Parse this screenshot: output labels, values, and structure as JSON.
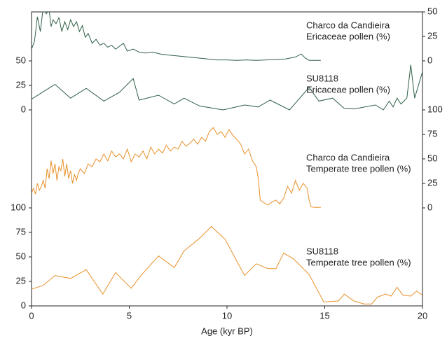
{
  "chart_data": [
    {
      "type": "line",
      "title": [
        "Charco da Candieira",
        "Ericaceae pollen (%)"
      ],
      "color": "#2f5f45",
      "axis_side": "right",
      "xlim": [
        0,
        20
      ],
      "ylim": [
        0,
        50
      ],
      "yticks": [
        0,
        25,
        50
      ],
      "x": [
        0,
        0.15,
        0.3,
        0.45,
        0.6,
        0.75,
        0.9,
        1.0,
        1.1,
        1.25,
        1.4,
        1.55,
        1.7,
        1.85,
        2.0,
        2.15,
        2.3,
        2.45,
        2.6,
        2.75,
        2.9,
        3.1,
        3.3,
        3.5,
        3.7,
        3.9,
        4.1,
        4.3,
        4.5,
        4.7,
        4.9,
        5.2,
        5.5,
        5.8,
        6.2,
        6.6,
        7.0,
        7.5,
        8.0,
        8.5,
        9.0,
        9.5,
        10,
        10.5,
        11,
        11.5,
        12,
        12.5,
        13,
        13.5,
        13.8,
        14.0,
        14.2,
        14.8
      ],
      "values": [
        12,
        20,
        45,
        30,
        55,
        48,
        52,
        35,
        42,
        38,
        44,
        30,
        40,
        32,
        42,
        35,
        40,
        30,
        36,
        24,
        28,
        18,
        22,
        16,
        18,
        14,
        16,
        12,
        15,
        18,
        10,
        12,
        9,
        8,
        9,
        7,
        6,
        5,
        4,
        3,
        2,
        1,
        1,
        0.5,
        1,
        0.5,
        1,
        1.5,
        2,
        4,
        7,
        3,
        0.5,
        0.5
      ]
    },
    {
      "type": "line",
      "title": [
        "SU8118",
        "Ericaceae pollen (%)"
      ],
      "color": "#2f5f45",
      "axis_side": "left",
      "xlim": [
        0,
        20
      ],
      "ylim": [
        0,
        50
      ],
      "yticks": [
        0,
        25,
        50
      ],
      "x": [
        0,
        0.8,
        1.2,
        2.0,
        2.8,
        3.7,
        4.5,
        5.2,
        5.5,
        6.5,
        7.3,
        7.8,
        8.6,
        9.8,
        10.9,
        11.6,
        12.2,
        13.2,
        14.2,
        14.7,
        15.4,
        16.0,
        16.5,
        17.6,
        18.0,
        18.3,
        18.5,
        18.7,
        18.9,
        19.2,
        19.4,
        19.6,
        20
      ],
      "values": [
        11,
        21,
        26,
        12,
        22,
        9,
        18,
        32,
        10,
        15,
        6,
        12,
        4,
        0,
        5,
        3,
        10,
        0,
        23,
        9,
        12,
        1.5,
        1,
        5,
        0,
        9,
        3,
        12,
        6,
        12,
        46,
        12,
        39
      ]
    },
    {
      "type": "line",
      "title": [
        "Charco da Candieira",
        "Temperate tree pollen (%)"
      ],
      "color": "#e8902a",
      "axis_side": "right",
      "xlim": [
        0,
        20
      ],
      "ylim": [
        0,
        100
      ],
      "yticks": [
        0,
        25,
        50,
        75,
        100
      ],
      "x": [
        0,
        0.1,
        0.2,
        0.3,
        0.4,
        0.5,
        0.6,
        0.7,
        0.8,
        0.9,
        1.0,
        1.1,
        1.2,
        1.3,
        1.4,
        1.5,
        1.6,
        1.7,
        1.8,
        1.9,
        2.0,
        2.1,
        2.2,
        2.3,
        2.4,
        2.5,
        2.7,
        2.9,
        3.1,
        3.3,
        3.5,
        3.7,
        3.9,
        4.1,
        4.3,
        4.5,
        4.7,
        4.9,
        5.1,
        5.3,
        5.5,
        5.7,
        5.9,
        6.1,
        6.3,
        6.5,
        6.7,
        6.9,
        7.1,
        7.3,
        7.5,
        7.7,
        7.9,
        8.1,
        8.3,
        8.5,
        8.7,
        8.9,
        9.1,
        9.3,
        9.5,
        9.7,
        9.9,
        10.1,
        10.3,
        10.5,
        10.7,
        10.9,
        11.1,
        11.3,
        11.5,
        11.6,
        11.7,
        11.9,
        12.1,
        12.3,
        12.5,
        12.7,
        12.9,
        13.1,
        13.3,
        13.5,
        13.7,
        13.9,
        14.1,
        14.2,
        14.3,
        14.5,
        14.8
      ],
      "values": [
        15,
        20,
        14,
        25,
        18,
        22,
        28,
        20,
        40,
        30,
        48,
        35,
        45,
        28,
        42,
        38,
        50,
        32,
        45,
        30,
        38,
        25,
        34,
        28,
        36,
        40,
        35,
        45,
        42,
        50,
        47,
        55,
        48,
        58,
        52,
        55,
        50,
        60,
        47,
        55,
        52,
        58,
        50,
        62,
        55,
        60,
        56,
        64,
        58,
        62,
        60,
        68,
        63,
        66,
        70,
        65,
        72,
        68,
        78,
        82,
        75,
        78,
        72,
        80,
        74,
        70,
        65,
        55,
        60,
        48,
        42,
        30,
        8,
        5,
        3,
        6,
        8,
        4,
        10,
        22,
        15,
        28,
        18,
        25,
        20,
        8,
        1,
        0.5,
        0.5
      ]
    },
    {
      "type": "line",
      "title": [
        "SU8118",
        "Temperate tree pollen (%)"
      ],
      "color": "#e8902a",
      "axis_side": "left",
      "xlim": [
        0,
        20
      ],
      "ylim": [
        0,
        100
      ],
      "yticks": [
        0,
        25,
        50,
        75,
        100
      ],
      "xticks": [
        0,
        5,
        10,
        15,
        20
      ],
      "xlabel": "Age (kyr BP)",
      "x": [
        0,
        0.6,
        1.2,
        2.0,
        2.8,
        3.65,
        4.3,
        5.1,
        5.6,
        6.5,
        7.3,
        7.8,
        8.6,
        9.2,
        9.9,
        10.9,
        11.5,
        12.1,
        12.5,
        12.9,
        13.4,
        14.2,
        14.95,
        15.7,
        16.0,
        16.5,
        17.0,
        17.4,
        17.7,
        18.1,
        18.4,
        18.7,
        19.0,
        19.4,
        19.7,
        20
      ],
      "values": [
        17,
        21,
        31,
        28,
        37,
        12,
        34,
        18,
        31,
        51,
        39,
        56,
        69,
        81,
        68,
        31,
        43,
        38,
        38,
        54,
        48,
        32,
        4,
        5,
        12,
        5,
        2,
        2,
        9,
        12,
        10,
        19,
        11,
        10,
        15,
        11
      ]
    }
  ]
}
